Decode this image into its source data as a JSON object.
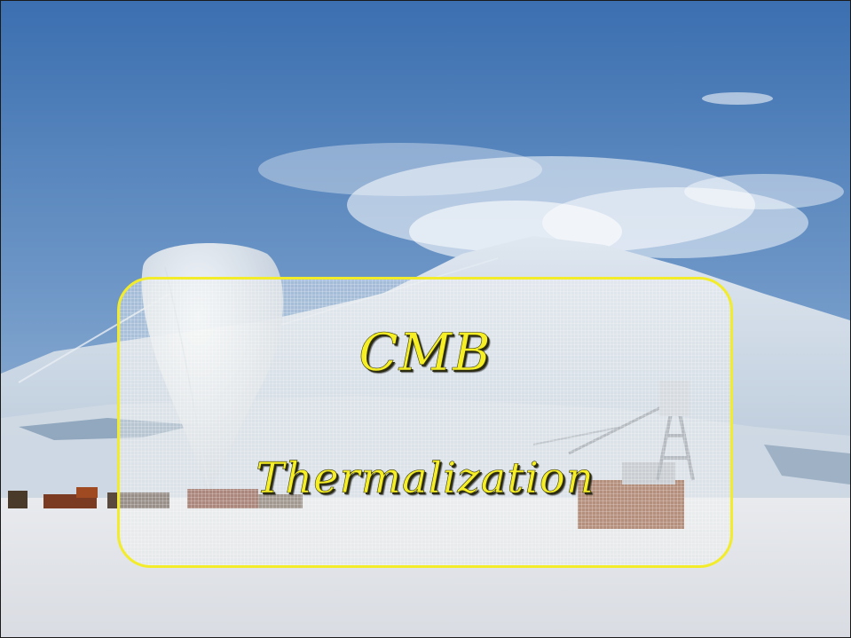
{
  "slide": {
    "title": "CMB",
    "subtitle": "Thermalization"
  },
  "background": {
    "scene": "antarctic-balloon-launch-photo",
    "colors": {
      "sky_top": "#3f73b3",
      "sky_bottom": "#9cbbd9",
      "mountain": "#c9d6e4",
      "ice": "#e4e6ea"
    }
  },
  "accent_color": "#f6ef25"
}
